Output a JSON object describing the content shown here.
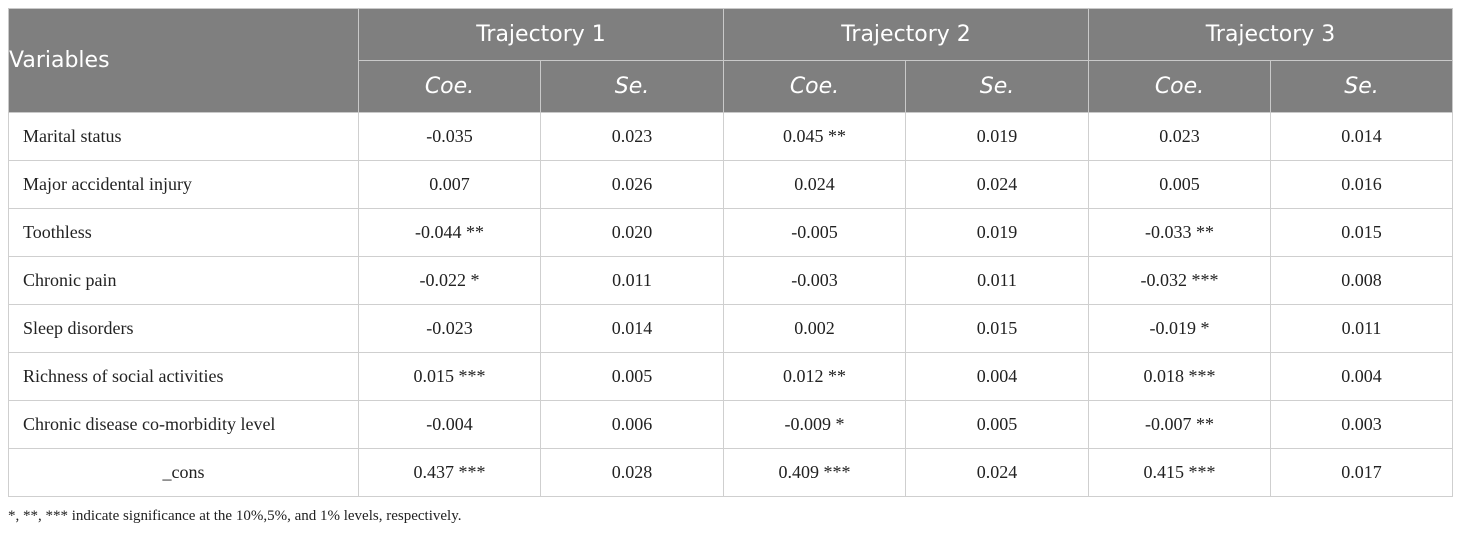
{
  "header": {
    "variables_label": "Variables",
    "trajectories": [
      "Trajectory 1",
      "Trajectory 2",
      "Trajectory 3"
    ],
    "subheaders": [
      "Coe.",
      "Se.",
      "Coe.",
      "Se.",
      "Coe.",
      "Se."
    ]
  },
  "rows": [
    {
      "variable": "Marital status",
      "cells": [
        "-0.035",
        "0.023",
        "0.045 **",
        "0.019",
        "0.023",
        "0.014"
      ]
    },
    {
      "variable": "Major accidental injury",
      "cells": [
        "0.007",
        "0.026",
        "0.024",
        "0.024",
        "0.005",
        "0.016"
      ]
    },
    {
      "variable": "Toothless",
      "cells": [
        "-0.044 **",
        "0.020",
        "-0.005",
        "0.019",
        "-0.033 **",
        "0.015"
      ]
    },
    {
      "variable": "Chronic pain",
      "cells": [
        "-0.022 *",
        "0.011",
        "-0.003",
        "0.011",
        "-0.032 ***",
        "0.008"
      ]
    },
    {
      "variable": "Sleep disorders",
      "cells": [
        "-0.023",
        "0.014",
        "0.002",
        "0.015",
        "-0.019 *",
        "0.011"
      ]
    },
    {
      "variable": "Richness of social activities",
      "cells": [
        "0.015 ***",
        "0.005",
        "0.012 **",
        "0.004",
        "0.018 ***",
        "0.004"
      ]
    },
    {
      "variable": "Chronic disease co-morbidity level",
      "cells": [
        "-0.004",
        "0.006",
        "-0.009 *",
        "0.005",
        "-0.007 **",
        "0.003"
      ]
    },
    {
      "variable": "_cons",
      "cells": [
        "0.437 ***",
        "0.028",
        "0.409 ***",
        "0.024",
        "0.415 ***",
        "0.017"
      ]
    }
  ],
  "note": "*, **, *** indicate significance at the 10%,5%, and 1% levels, respectively."
}
